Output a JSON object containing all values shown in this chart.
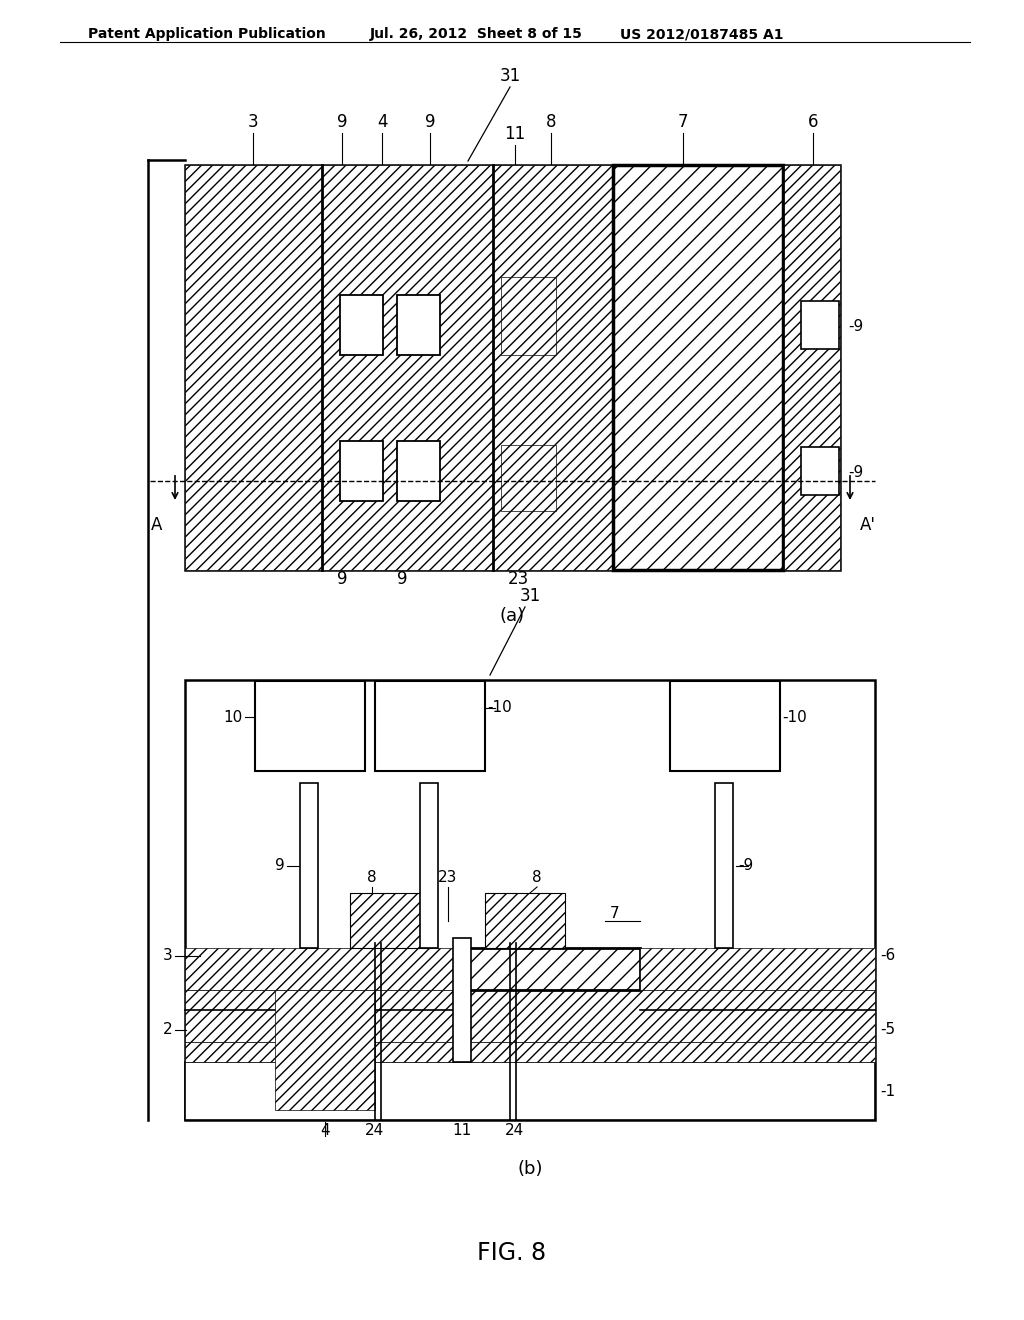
{
  "background_color": "#ffffff",
  "header_left": "Patent Application Publication",
  "header_mid": "Jul. 26, 2012  Sheet 8 of 15",
  "header_right": "US 2012/0187485 A1",
  "fig_label": "FIG. 8",
  "sub_a_label": "(a)",
  "sub_b_label": "(b)"
}
